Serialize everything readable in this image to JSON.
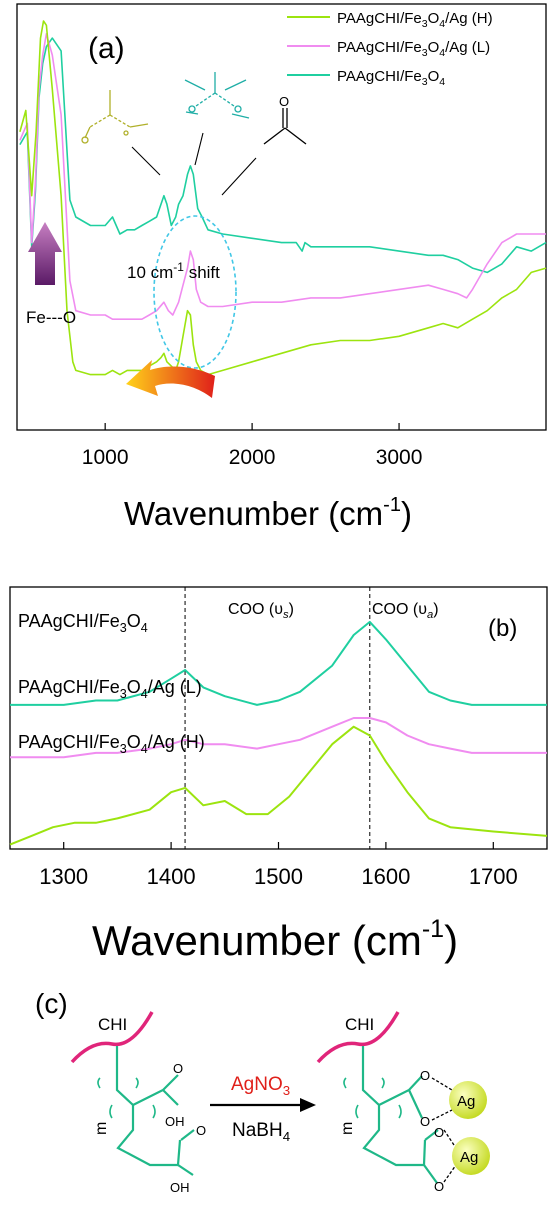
{
  "colors": {
    "high": "#9ce40f",
    "low": "#f08cf0",
    "base": "#1fcfa0",
    "ellipse": "#41c7e6",
    "arrow_up": "#9a4f94",
    "arrow_shift": "#f06a18",
    "chi_chain": "#e0257a",
    "backbone": "#1fb888",
    "ag_particle": "#d8ea2a",
    "agno3_text": "#e0201a"
  },
  "panel_a": {
    "label": "(a)",
    "xlabel_main": "Wavenumber (cm",
    "xlabel_exp": "-1",
    "xlabel_close": ")",
    "ticks": [
      "1000",
      "2000",
      "3000"
    ],
    "legend": [
      {
        "pre": "PAAgCHI/Fe",
        "s1": "3",
        "mid": "O",
        "s2": "4",
        "post": "/Ag (H)"
      },
      {
        "pre": "PAAgCHI/Fe",
        "s1": "3",
        "mid": "O",
        "s2": "4",
        "post": "/Ag (L)"
      },
      {
        "pre": "PAAgCHI/Fe",
        "s1": "3",
        "mid": "O",
        "s2": "4",
        "post": ""
      }
    ],
    "fe_o": "Fe---O",
    "shift_pre": "10 cm",
    "shift_exp": "-1",
    "shift_post": " shift",
    "carboxyl_o": "O"
  },
  "panel_b": {
    "label": "(b)",
    "xlabel_main": "Wavenumber (cm",
    "xlabel_exp": "-1",
    "xlabel_close": ")",
    "ticks": [
      "1300",
      "1400",
      "1500",
      "1600",
      "1700"
    ],
    "coo_s": "COO (υ",
    "coo_s_sub": "s",
    "coo_a": "COO (υ",
    "coo_a_sub": "a",
    "paren": ")",
    "series_labels": [
      {
        "pre": "PAAgCHI/Fe",
        "s1": "3",
        "mid": "O",
        "s2": "4",
        "post": ""
      },
      {
        "pre": "PAAgCHI/Fe",
        "s1": "3",
        "mid": "O",
        "s2": "4",
        "post": "/Ag (L)"
      },
      {
        "pre": "PAAgCHI/Fe",
        "s1": "3",
        "mid": "O",
        "s2": "4",
        "post": "/Ag (H)"
      }
    ]
  },
  "panel_c": {
    "label": "(c)",
    "chi_left": "CHI",
    "chi_right": "CHI",
    "reagent_top_pre": "AgNO",
    "reagent_top_sub": "3",
    "reagent_bottom_pre": "NaBH",
    "reagent_bottom_sub": "4",
    "o": "O",
    "oh": "OH",
    "ag": "Ag",
    "m": "m"
  },
  "chart_data": [
    {
      "type": "line",
      "title": "(a)",
      "xlabel": "Wavenumber (cm-1)",
      "ylabel": "",
      "xlim": [
        400,
        4000
      ],
      "grid": false,
      "legend_position": "top-right",
      "series": [
        {
          "name": "PAAgCHI/Fe3O4",
          "x": [
            420,
            470,
            500,
            525,
            550,
            575,
            600,
            640,
            700,
            760,
            800,
            900,
            1000,
            1050,
            1100,
            1150,
            1200,
            1250,
            1300,
            1350,
            1400,
            1420,
            1450,
            1480,
            1500,
            1530,
            1560,
            1580,
            1600,
            1630,
            1660,
            1700,
            1800,
            2000,
            2200,
            2300,
            2340,
            2360,
            2400,
            2600,
            2800,
            3000,
            3200,
            3300,
            3400,
            3500,
            3600,
            3700,
            3800,
            3900,
            4000
          ],
          "y": [
            67,
            70,
            43,
            56,
            78,
            86,
            90,
            92,
            89,
            54,
            50,
            48,
            48,
            50,
            46,
            47,
            47,
            48,
            49,
            50,
            55,
            53,
            48,
            50,
            53,
            55,
            60,
            62,
            60,
            52,
            50,
            47,
            46,
            45,
            44,
            44,
            42,
            44,
            43,
            43,
            43,
            42,
            41,
            41,
            40,
            38,
            37,
            39,
            43,
            42,
            44
          ]
        },
        {
          "name": "PAAgCHI/Fe3O4/Ag (L)",
          "x": [
            420,
            470,
            500,
            525,
            550,
            575,
            600,
            640,
            700,
            760,
            800,
            900,
            1000,
            1050,
            1100,
            1150,
            1200,
            1250,
            1300,
            1350,
            1400,
            1430,
            1460,
            1500,
            1530,
            1560,
            1580,
            1600,
            1620,
            1650,
            1700,
            1800,
            2000,
            2200,
            2400,
            2600,
            2800,
            3000,
            3200,
            3300,
            3400,
            3460,
            3500,
            3600,
            3700,
            3800,
            3900,
            4000
          ],
          "y": [
            68,
            72,
            44,
            58,
            80,
            88,
            93,
            88,
            74,
            35,
            28,
            27,
            27,
            26,
            26,
            26,
            26,
            26,
            27,
            28,
            30,
            28,
            27,
            30,
            34,
            38,
            42,
            40,
            33,
            30,
            29,
            29,
            30,
            30,
            31,
            31,
            32,
            33,
            34,
            33,
            32,
            31,
            33,
            39,
            44,
            46,
            46,
            46
          ]
        },
        {
          "name": "PAAgCHI/Fe3O4/Ag (H)",
          "x": [
            420,
            460,
            500,
            530,
            560,
            580,
            600,
            640,
            700,
            740,
            780,
            800,
            900,
            1000,
            1050,
            1100,
            1150,
            1200,
            1250,
            1300,
            1350,
            1380,
            1400,
            1420,
            1450,
            1480,
            1500,
            1530,
            1560,
            1580,
            1600,
            1620,
            1650,
            1700,
            1800,
            2000,
            2200,
            2400,
            2600,
            2800,
            3000,
            3200,
            3300,
            3400,
            3500,
            3600,
            3700,
            3800,
            3900,
            4000
          ],
          "y": [
            70,
            75,
            55,
            70,
            92,
            96,
            95,
            80,
            55,
            28,
            16,
            14,
            13,
            13,
            14,
            13,
            14,
            14,
            14,
            15,
            16,
            17,
            18,
            16,
            15,
            14,
            16,
            22,
            28,
            27,
            20,
            16,
            14,
            13,
            14,
            16,
            18,
            20,
            21,
            21,
            22,
            24,
            25,
            24,
            26,
            28,
            31,
            33,
            37,
            38
          ]
        }
      ]
    },
    {
      "type": "line",
      "title": "(b)",
      "xlabel": "Wavenumber (cm-1)",
      "ylabel": "",
      "xlim": [
        1250,
        1750
      ],
      "grid": false,
      "x_markers": [
        1413,
        1585
      ],
      "series": [
        {
          "name": "PAAgCHI/Fe3O4",
          "x": [
            1250,
            1280,
            1300,
            1330,
            1350,
            1380,
            1400,
            1413,
            1430,
            1450,
            1480,
            1500,
            1520,
            1550,
            1570,
            1585,
            1600,
            1620,
            1640,
            1660,
            1680,
            1700,
            1750
          ],
          "y": [
            33,
            33,
            33,
            34,
            34,
            36,
            39,
            41,
            37,
            35,
            33,
            34,
            36,
            42,
            49,
            52,
            48,
            42,
            36,
            34,
            33,
            33,
            33
          ]
        },
        {
          "name": "PAAgCHI/Fe3O4/Ag (L)",
          "x": [
            1250,
            1280,
            1300,
            1330,
            1350,
            1380,
            1400,
            1413,
            1430,
            1450,
            1480,
            1500,
            1520,
            1550,
            1570,
            1585,
            1600,
            1620,
            1640,
            1660,
            1680,
            1700,
            1750
          ],
          "y": [
            21,
            21,
            21,
            22,
            22,
            23,
            24,
            25,
            24,
            24,
            23,
            24,
            25,
            28,
            30,
            30,
            29,
            26,
            24,
            23,
            22,
            22,
            22
          ]
        },
        {
          "name": "PAAgCHI/Fe3O4/Ag (H)",
          "x": [
            1250,
            1270,
            1290,
            1310,
            1330,
            1350,
            1380,
            1400,
            1413,
            1430,
            1450,
            1470,
            1490,
            1510,
            1530,
            1550,
            1570,
            1585,
            1600,
            1620,
            1640,
            1660,
            1700,
            1750
          ],
          "y": [
            1,
            3,
            5,
            6,
            6,
            7,
            9,
            13,
            14,
            10,
            11,
            8,
            8,
            12,
            18,
            24,
            28,
            26,
            20,
            13,
            7,
            5,
            4,
            3
          ]
        }
      ]
    }
  ]
}
